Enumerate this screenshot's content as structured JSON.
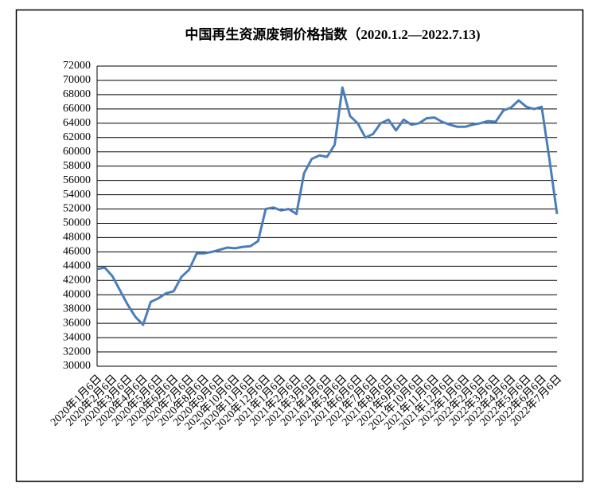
{
  "chart_data": {
    "type": "line",
    "title": "中国再生资源废铜价格指数（2020.1.2—2022.7.13)",
    "categories": [
      "2020年1月6日",
      null,
      "2020年2月6日",
      null,
      "2020年3月6日",
      null,
      "2020年4月6日",
      null,
      "2020年5月6日",
      null,
      "2020年6月6日",
      null,
      "2020年7月6日",
      null,
      "2020年8月6日",
      null,
      "2020年9月6日",
      null,
      "2020年10月6日",
      null,
      "2020年11月6日",
      null,
      "2020年12月6日",
      null,
      "2021年1月6日",
      null,
      "2021年2月6日",
      null,
      "2021年3月6日",
      null,
      "2021年4月6日",
      null,
      "2021年5月6日",
      null,
      "2021年6月6日",
      null,
      "2021年7月6日",
      null,
      "2021年8月6日",
      null,
      "2021年9月6日",
      null,
      "2021年10月6日",
      null,
      "2021年11月6日",
      null,
      "2021年12月6日",
      null,
      "2022年1月6日",
      null,
      "2022年2月6日",
      null,
      "2022年3月6日",
      null,
      "2022年4月6日",
      null,
      "2022年5月6日",
      null,
      "2022年6月6日",
      null,
      "2022年7月6日"
    ],
    "series": [
      {
        "color": "#4a7ebb",
        "values": [
          43600,
          43800,
          42600,
          40600,
          38600,
          36900,
          35800,
          39000,
          39500,
          40200,
          40500,
          42500,
          43500,
          45800,
          45800,
          46000,
          46300,
          46600,
          46500,
          46700,
          46800,
          47500,
          52000,
          52200,
          51800,
          52000,
          51300,
          57000,
          59000,
          59500,
          59300,
          61000,
          69000,
          65000,
          64000,
          62000,
          62500,
          64000,
          64500,
          63000,
          64500,
          63800,
          64000,
          64700,
          64800,
          64200,
          63800,
          63500,
          63500,
          63800,
          64000,
          64300,
          64200,
          65800,
          66200,
          67200,
          66300,
          66000,
          66300,
          59000,
          51300
        ]
      }
    ],
    "ylim": [
      30000,
      72000
    ],
    "yticks": [
      30000,
      32000,
      34000,
      36000,
      38000,
      40000,
      42000,
      44000,
      46000,
      48000,
      50000,
      52000,
      54000,
      56000,
      58000,
      60000,
      62000,
      64000,
      66000,
      68000,
      70000,
      72000
    ],
    "grid": true
  }
}
